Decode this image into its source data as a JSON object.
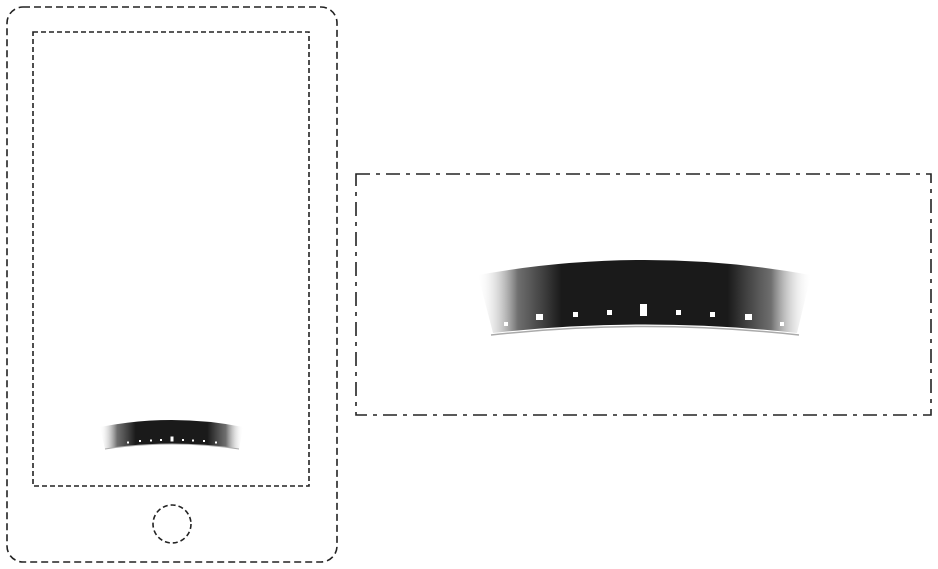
{
  "figure": {
    "line_color": "#222222",
    "dial_color": "#1a1a1a",
    "tick_color": "#ffffff",
    "phone_icon": "phone-outline",
    "home_button_icon": "home-button-circle",
    "dial_icon": "curved-scale-dial"
  }
}
